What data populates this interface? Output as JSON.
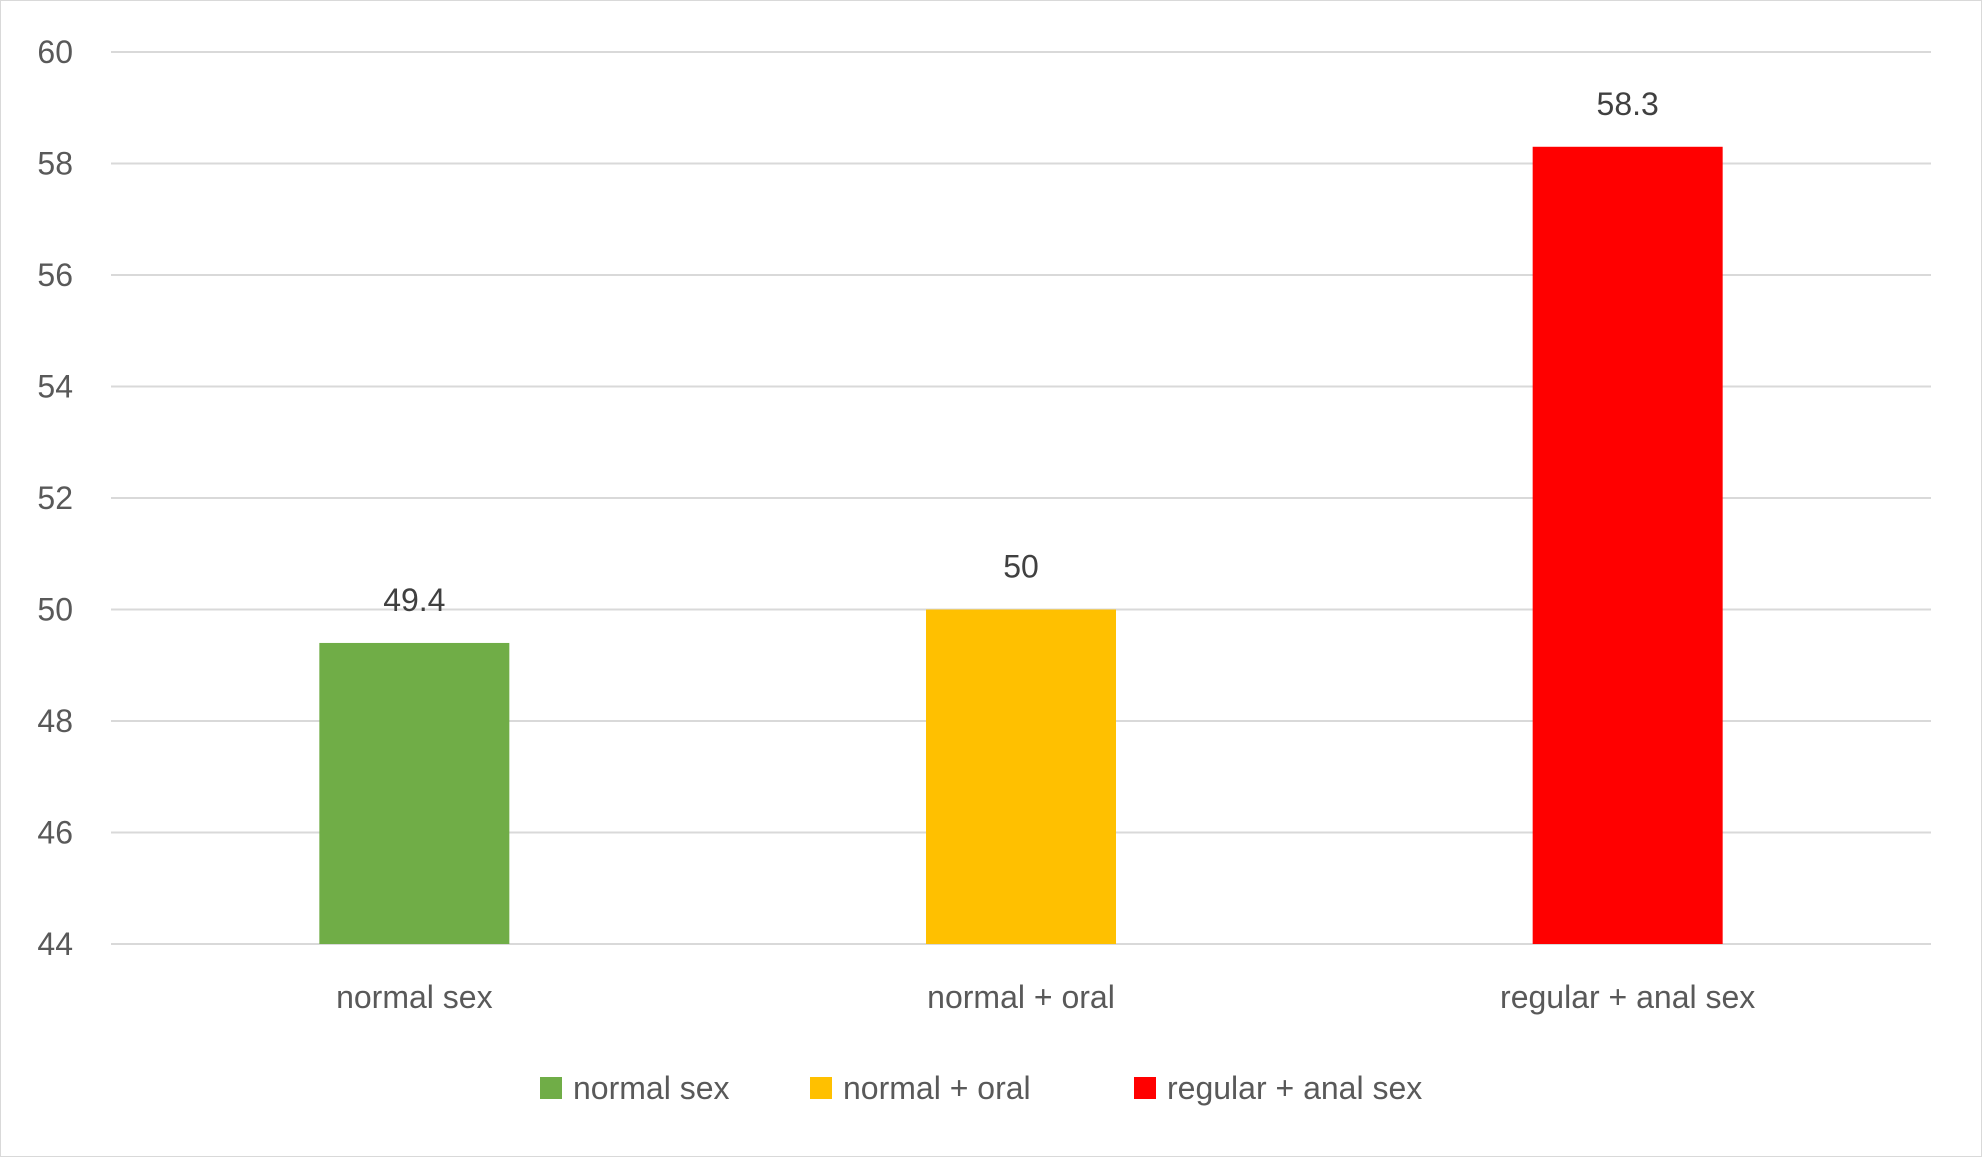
{
  "chart_data": {
    "type": "bar",
    "title": "",
    "xlabel": "",
    "ylabel": "",
    "ylim": [
      44,
      60
    ],
    "y_ticks": [
      "44",
      "46",
      "48",
      "50",
      "52",
      "54",
      "56",
      "58",
      "60"
    ],
    "grid": true,
    "legend_position": "bottom",
    "categories": [
      "normal sex",
      "normal + oral",
      "regular + anal sex"
    ],
    "series": [
      {
        "name": "normal sex",
        "color": "#70ad47",
        "values": [
          49.4,
          null,
          null
        ]
      },
      {
        "name": "normal + oral",
        "color": "#ffc000",
        "values": [
          null,
          50,
          null
        ]
      },
      {
        "name": "regular + anal sex",
        "color": "#ff0000",
        "values": [
          null,
          null,
          58.3
        ]
      }
    ],
    "data_labels": [
      "49.4",
      "50",
      "58.3"
    ]
  }
}
